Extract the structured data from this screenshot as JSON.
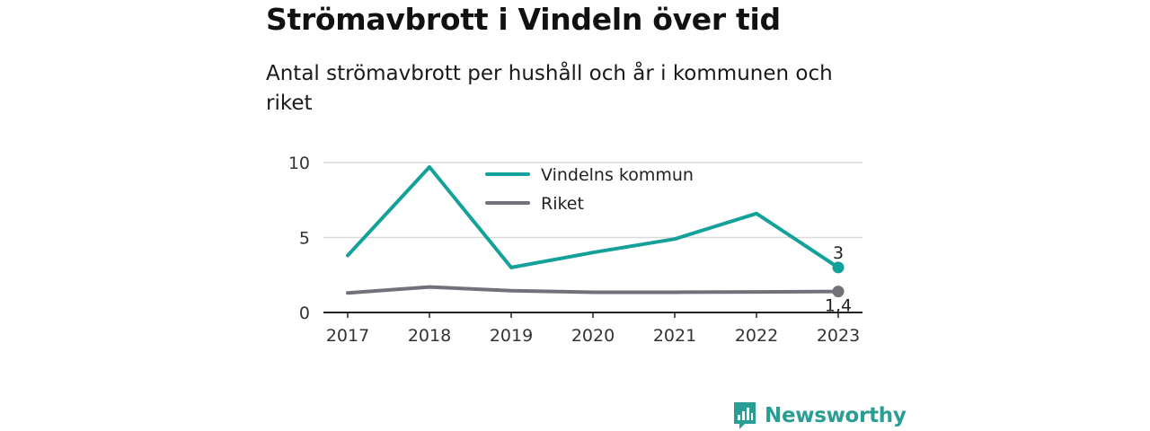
{
  "header": {
    "title": "Strömavbrott i Vindeln över tid",
    "subtitle": "Antal strömavbrott per hushåll och år i kommunen och riket"
  },
  "brand": {
    "name": "Newsworthy",
    "icon": "newsworthy-logo-icon",
    "color": "#2a9d94"
  },
  "chart_data": {
    "type": "line",
    "title": "Strömavbrott i Vindeln över tid",
    "subtitle": "Antal strömavbrott per hushåll och år i kommunen och riket",
    "x": [
      "2017",
      "2018",
      "2019",
      "2020",
      "2021",
      "2022",
      "2023"
    ],
    "ylim": [
      0,
      10
    ],
    "yticks": [
      "0",
      "5",
      "10"
    ],
    "grid": true,
    "legend_position": "top-center",
    "series": [
      {
        "name": "Vindelns kommun",
        "color": "#14a19a",
        "values": [
          3.8,
          9.7,
          3.0,
          4.0,
          4.9,
          6.6,
          3.0
        ],
        "end_label": "3"
      },
      {
        "name": "Riket",
        "color": "#727179",
        "values": [
          1.3,
          1.7,
          1.45,
          1.35,
          1.35,
          1.37,
          1.4
        ],
        "end_label": "1,4"
      }
    ]
  }
}
